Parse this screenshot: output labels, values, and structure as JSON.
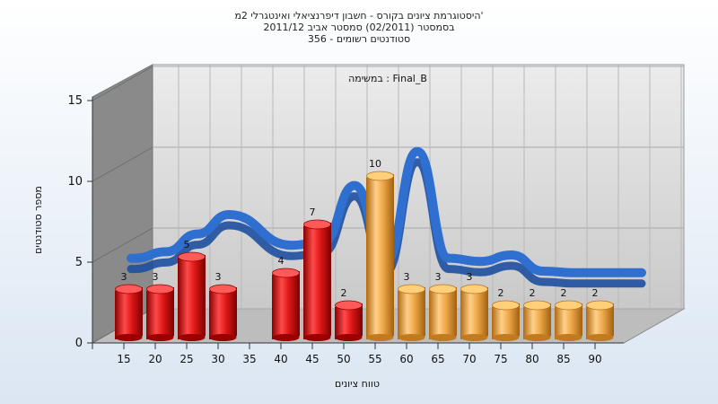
{
  "chart_data": {
    "type": "bar",
    "title_lines": [
      "היסטוגרמת ציונים בקורס - חשבון דיפרנציאלי ואינטגרלי 2מ'",
      "בסמסטר  (02/2011)  סמסטר אביב 2011/12",
      "סטודנטים רשומים - 356"
    ],
    "annotation": "במשימה : Final_B",
    "xlabel": "טווח ציונים",
    "ylabel": "מספר סטודנטים",
    "x_ticks": [
      "15",
      "20",
      "25",
      "30",
      "35",
      "40",
      "45",
      "50",
      "55",
      "60",
      "65",
      "70",
      "75",
      "80",
      "85",
      "90"
    ],
    "y_ticks": [
      "0",
      "5",
      "10",
      "15"
    ],
    "ylim": [
      0,
      15
    ],
    "categories": [
      "15",
      "20",
      "25",
      "30",
      "40",
      "45",
      "50",
      "55",
      "60",
      "65",
      "70",
      "75",
      "80",
      "85",
      "90"
    ],
    "values": [
      3,
      3,
      5,
      3,
      4,
      7,
      2,
      10,
      3,
      3,
      3,
      2,
      2,
      2,
      2
    ],
    "colors": {
      "fail": "#e01818",
      "pass": "#f0a848",
      "curve": "#2f6fd0",
      "floor": "#bdbdbd",
      "back_wall": "#d6d6d6",
      "left_wall": "#8a8a8a"
    },
    "curve_values": [
      3.8,
      4.2,
      5.3,
      6.5,
      4.6,
      4.8,
      8.3,
      3.6,
      10.4,
      3.8,
      3.6,
      4.0,
      3.0,
      2.9,
      2.9
    ]
  }
}
